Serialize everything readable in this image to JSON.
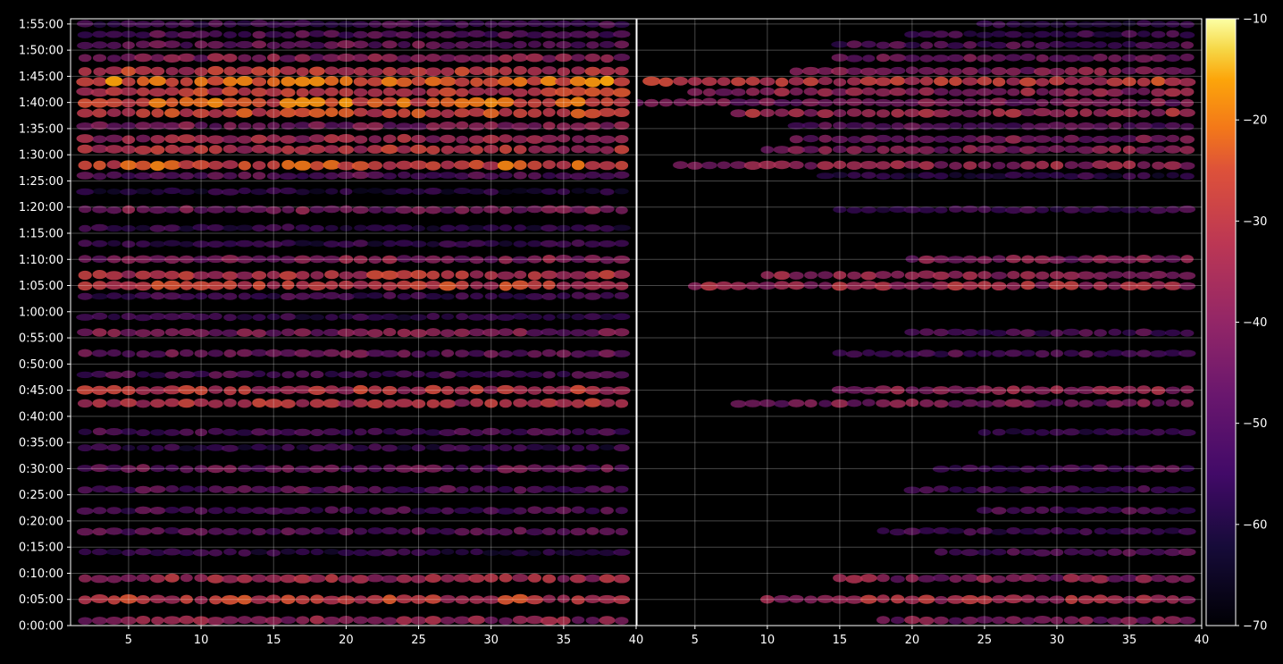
{
  "chart_data": {
    "type": "heatmap",
    "title": "",
    "xlabel": "",
    "ylabel": "",
    "background": "#000000",
    "colormap": "inferno",
    "grid": true,
    "grid_color": "#ffffff",
    "y_ticks": [
      "0:00:00",
      "0:05:00",
      "0:10:00",
      "0:15:00",
      "0:20:00",
      "0:25:00",
      "0:30:00",
      "0:35:00",
      "0:40:00",
      "0:45:00",
      "0:50:00",
      "0:55:00",
      "1:00:00",
      "1:05:00",
      "1:10:00",
      "1:15:00",
      "1:20:00",
      "1:25:00",
      "1:30:00",
      "1:35:00",
      "1:40:00",
      "1:45:00",
      "1:50:00",
      "1:55:00"
    ],
    "ylim_minutes": [
      0,
      116
    ],
    "panels": [
      {
        "name": "left",
        "xlim": [
          1,
          40
        ],
        "x_ticks": [
          "5",
          "10",
          "15",
          "20",
          "25",
          "30",
          "35",
          "40"
        ],
        "rows": [
          {
            "minute": 1,
            "start": 2,
            "end": 39.5,
            "value": -38
          },
          {
            "minute": 5,
            "start": 2,
            "end": 39.5,
            "value": -30
          },
          {
            "minute": 9,
            "start": 2,
            "end": 39.5,
            "value": -36
          },
          {
            "minute": 14,
            "start": 2,
            "end": 39.5,
            "value": -55
          },
          {
            "minute": 18,
            "start": 2,
            "end": 39.5,
            "value": -48
          },
          {
            "minute": 22,
            "start": 2,
            "end": 39.5,
            "value": -50
          },
          {
            "minute": 26,
            "start": 2,
            "end": 39.5,
            "value": -48
          },
          {
            "minute": 30,
            "start": 2,
            "end": 39.5,
            "value": -45
          },
          {
            "minute": 34,
            "start": 2,
            "end": 39.5,
            "value": -55
          },
          {
            "minute": 37,
            "start": 2,
            "end": 39.5,
            "value": -50
          },
          {
            "minute": 42.5,
            "start": 2,
            "end": 39.5,
            "value": -33
          },
          {
            "minute": 45,
            "start": 2,
            "end": 39.5,
            "value": -32
          },
          {
            "minute": 48,
            "start": 2,
            "end": 39.5,
            "value": -50
          },
          {
            "minute": 52,
            "start": 2,
            "end": 39.5,
            "value": -45
          },
          {
            "minute": 56,
            "start": 2,
            "end": 39.5,
            "value": -42
          },
          {
            "minute": 59,
            "start": 2,
            "end": 39.5,
            "value": -55
          },
          {
            "minute": 63,
            "start": 2,
            "end": 39.5,
            "value": -52
          },
          {
            "minute": 65,
            "start": 2,
            "end": 39.5,
            "value": -30
          },
          {
            "minute": 67,
            "start": 2,
            "end": 39.5,
            "value": -32
          },
          {
            "minute": 70,
            "start": 2,
            "end": 39.5,
            "value": -40
          },
          {
            "minute": 73,
            "start": 2,
            "end": 39.5,
            "value": -55
          },
          {
            "minute": 76,
            "start": 2,
            "end": 39.5,
            "value": -55
          },
          {
            "minute": 79.5,
            "start": 2,
            "end": 39.5,
            "value": -42
          },
          {
            "minute": 83,
            "start": 2,
            "end": 39.5,
            "value": -58
          },
          {
            "minute": 86,
            "start": 2,
            "end": 39.5,
            "value": -48
          },
          {
            "minute": 88,
            "start": 2,
            "end": 39.5,
            "value": -26
          },
          {
            "minute": 91,
            "start": 2,
            "end": 39.5,
            "value": -32
          },
          {
            "minute": 93,
            "start": 2,
            "end": 39.5,
            "value": -36
          },
          {
            "minute": 95.5,
            "start": 2,
            "end": 39.5,
            "value": -42
          },
          {
            "minute": 98,
            "start": 2,
            "end": 39.5,
            "value": -28
          },
          {
            "minute": 100,
            "start": 2,
            "end": 39.5,
            "value": -24
          },
          {
            "minute": 102,
            "start": 2,
            "end": 39.5,
            "value": -30
          },
          {
            "minute": 104,
            "start": 2,
            "end": 39.5,
            "value": -22
          },
          {
            "minute": 106,
            "start": 2,
            "end": 39.5,
            "value": -30
          },
          {
            "minute": 108.5,
            "start": 2,
            "end": 39.5,
            "value": -40
          },
          {
            "minute": 111,
            "start": 2,
            "end": 39.5,
            "value": -45
          },
          {
            "minute": 113,
            "start": 2,
            "end": 39.5,
            "value": -48
          },
          {
            "minute": 115,
            "start": 2,
            "end": 39.5,
            "value": -52
          }
        ]
      },
      {
        "name": "right",
        "xlim": [
          1,
          40
        ],
        "x_ticks": [
          "5",
          "10",
          "15",
          "20",
          "25",
          "30",
          "35",
          "40"
        ],
        "rows": [
          {
            "minute": 1,
            "start": 18,
            "end": 39.5,
            "value": -42
          },
          {
            "minute": 5,
            "start": 10,
            "end": 39.5,
            "value": -35
          },
          {
            "minute": 9,
            "start": 15,
            "end": 39.5,
            "value": -40
          },
          {
            "minute": 14,
            "start": 22,
            "end": 39.5,
            "value": -50
          },
          {
            "minute": 18,
            "start": 18,
            "end": 39.5,
            "value": -52
          },
          {
            "minute": 22,
            "start": 25,
            "end": 39.5,
            "value": -50
          },
          {
            "minute": 26,
            "start": 20,
            "end": 39.5,
            "value": -52
          },
          {
            "minute": 30,
            "start": 22,
            "end": 39.5,
            "value": -50
          },
          {
            "minute": 37,
            "start": 25,
            "end": 39.5,
            "value": -52
          },
          {
            "minute": 42.5,
            "start": 8,
            "end": 39.5,
            "value": -42
          },
          {
            "minute": 45,
            "start": 15,
            "end": 39.5,
            "value": -38
          },
          {
            "minute": 52,
            "start": 15,
            "end": 39.5,
            "value": -50
          },
          {
            "minute": 56,
            "start": 20,
            "end": 39.5,
            "value": -50
          },
          {
            "minute": 65,
            "start": 5,
            "end": 39.5,
            "value": -35
          },
          {
            "minute": 67,
            "start": 10,
            "end": 39.5,
            "value": -38
          },
          {
            "minute": 70,
            "start": 20,
            "end": 39.5,
            "value": -42
          },
          {
            "minute": 79.5,
            "start": 15,
            "end": 39.5,
            "value": -52
          },
          {
            "minute": 86,
            "start": 14,
            "end": 39.5,
            "value": -55
          },
          {
            "minute": 88,
            "start": 4,
            "end": 39.5,
            "value": -38
          },
          {
            "minute": 91,
            "start": 10,
            "end": 39.5,
            "value": -40
          },
          {
            "minute": 93,
            "start": 12,
            "end": 39.5,
            "value": -42
          },
          {
            "minute": 95.5,
            "start": 12,
            "end": 39.5,
            "value": -48
          },
          {
            "minute": 98,
            "start": 8,
            "end": 39.5,
            "value": -35
          },
          {
            "minute": 100,
            "start": 1,
            "end": 39.5,
            "value": -42
          },
          {
            "minute": 102,
            "start": 5,
            "end": 39.5,
            "value": -38
          },
          {
            "minute": 104,
            "start": 2,
            "end": 39.5,
            "value": -30
          },
          {
            "minute": 106,
            "start": 12,
            "end": 39.5,
            "value": -40
          },
          {
            "minute": 108.5,
            "start": 15,
            "end": 39.5,
            "value": -45
          },
          {
            "minute": 111,
            "start": 15,
            "end": 39.5,
            "value": -50
          },
          {
            "minute": 113,
            "start": 20,
            "end": 39.5,
            "value": -52
          },
          {
            "minute": 115,
            "start": 25,
            "end": 39.5,
            "value": -55
          }
        ]
      }
    ],
    "colorbar": {
      "range": [
        -70,
        -10
      ],
      "ticks": [
        "−10",
        "−20",
        "−30",
        "−40",
        "−50",
        "−60",
        "−70"
      ],
      "tick_values": [
        -10,
        -20,
        -30,
        -40,
        -50,
        -60,
        -70
      ]
    }
  }
}
